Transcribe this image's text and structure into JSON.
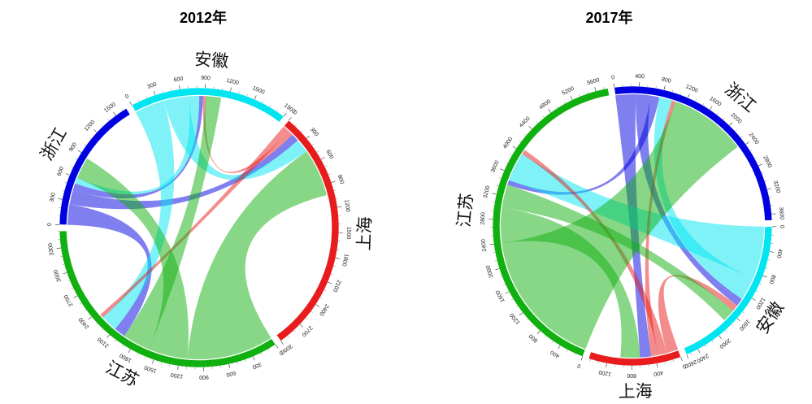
{
  "chart_data": [
    {
      "type": "chord",
      "title": "2012年",
      "sectors": [
        {
          "name": "浙江",
          "total": 1650,
          "color": "#0000e0"
        },
        {
          "name": "安徽",
          "total": 1900,
          "color": "#00e5f0"
        },
        {
          "name": "上海",
          "total": 3000,
          "color": "#e81c1c"
        },
        {
          "name": "江苏",
          "total": 3500,
          "color": "#10b010"
        }
      ],
      "ticks": [
        {
          "sector": "浙江",
          "labels": [
            "0",
            "300",
            "600",
            "900",
            "1200",
            "1500"
          ]
        },
        {
          "sector": "安徽",
          "labels": [
            "0",
            "300",
            "600",
            "900",
            "1200",
            "1500",
            "1900"
          ]
        },
        {
          "sector": "上海",
          "labels": [
            "0",
            "300",
            "600",
            "900",
            "1200",
            "1500",
            "1800",
            "2100",
            "2400",
            "2700",
            "3000"
          ]
        },
        {
          "sector": "江苏",
          "labels": [
            "0",
            "300",
            "600",
            "900",
            "1200",
            "1500",
            "1800",
            "2100",
            "2400",
            "2700",
            "3000",
            "3300"
          ]
        }
      ],
      "flows": [
        {
          "from": "浙江",
          "to": "江苏",
          "value": 260
        },
        {
          "from": "浙江",
          "to": "上海",
          "value": 180
        },
        {
          "from": "浙江",
          "to": "安徽",
          "value": 90
        },
        {
          "from": "安徽",
          "to": "江苏",
          "value": 380
        },
        {
          "from": "安徽",
          "to": "上海",
          "value": 320
        },
        {
          "from": "安徽",
          "to": "浙江",
          "value": 130
        },
        {
          "from": "上海",
          "to": "江苏",
          "value": 90
        },
        {
          "from": "上海",
          "to": "安徽",
          "value": 60
        },
        {
          "from": "江苏",
          "to": "上海",
          "value": 1100
        },
        {
          "from": "江苏",
          "to": "浙江",
          "value": 500
        },
        {
          "from": "江苏",
          "to": "安徽",
          "value": 350
        }
      ]
    },
    {
      "type": "chord",
      "title": "2017年",
      "sectors": [
        {
          "name": "浙江",
          "total": 3700,
          "color": "#0000e0"
        },
        {
          "name": "安徽",
          "total": 2600,
          "color": "#00e5f0"
        },
        {
          "name": "上海",
          "total": 1500,
          "color": "#e81c1c"
        },
        {
          "name": "江苏",
          "total": 5800,
          "color": "#10b010"
        }
      ],
      "ticks": [
        {
          "sector": "浙江",
          "labels": [
            "0",
            "400",
            "800",
            "1200",
            "1600",
            "2000",
            "2400",
            "2800",
            "3200",
            "3600"
          ]
        },
        {
          "sector": "安徽",
          "labels": [
            "0",
            "400",
            "800",
            "1200",
            "1600",
            "2000",
            "2400",
            "2600"
          ]
        },
        {
          "sector": "上海",
          "labels": [
            "0",
            "400",
            "800",
            "1200"
          ]
        },
        {
          "sector": "江苏",
          "labels": [
            "0",
            "400",
            "800",
            "1200",
            "1600",
            "2000",
            "2400",
            "2800",
            "3200",
            "3600",
            "4000",
            "4400",
            "4800",
            "5200",
            "5600"
          ]
        }
      ],
      "flows": [
        {
          "from": "浙江",
          "to": "上海",
          "value": 350
        },
        {
          "from": "浙江",
          "to": "安徽",
          "value": 250
        },
        {
          "from": "浙江",
          "to": "江苏",
          "value": 150
        },
        {
          "from": "安徽",
          "to": "江苏",
          "value": 900
        },
        {
          "from": "安徽",
          "to": "浙江",
          "value": 400
        },
        {
          "from": "上海",
          "to": "安徽",
          "value": 200
        },
        {
          "from": "上海",
          "to": "江苏",
          "value": 150
        },
        {
          "from": "上海",
          "to": "浙江",
          "value": 120
        },
        {
          "from": "江苏",
          "to": "浙江",
          "value": 2400
        },
        {
          "from": "江苏",
          "to": "上海",
          "value": 600
        },
        {
          "from": "江苏",
          "to": "安徽",
          "value": 400
        }
      ]
    }
  ]
}
